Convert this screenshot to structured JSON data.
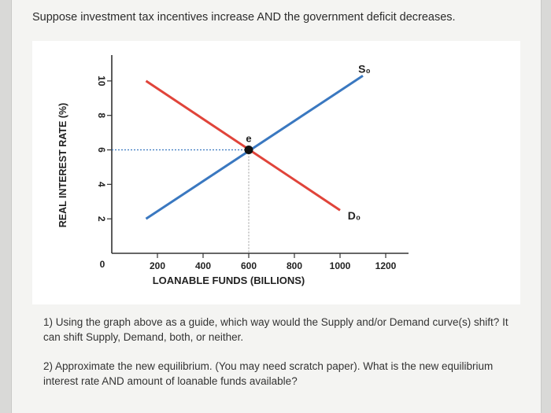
{
  "prompt": "Suppose investment tax incentives increase AND the government deficit decreases.",
  "questions": {
    "q1": "1) Using the graph above as a guide, which way would the Supply and/or Demand curve(s) shift? It can shift Supply, Demand, both, or neither.",
    "q2": "2) Approximate the new equilibrium. (You may need scratch paper). What is the new equilibrium interest rate AND amount of loanable funds available?"
  },
  "chart_data": {
    "type": "line",
    "xlabel": "LOANABLE FUNDS (BILLIONS)",
    "ylabel": "REAL INTEREST RATE (%)",
    "x_ticks": [
      200,
      400,
      600,
      800,
      1000,
      1200
    ],
    "y_ticks": [
      2,
      4,
      6,
      8,
      10
    ],
    "origin_label": "0",
    "xlim": [
      0,
      1300
    ],
    "ylim": [
      0,
      11.5
    ],
    "series": [
      {
        "name": "S₀",
        "color": "#3a78c0",
        "points": [
          [
            150,
            2
          ],
          [
            1100,
            10.3
          ]
        ]
      },
      {
        "name": "D₀",
        "color": "#e0443a",
        "points": [
          [
            150,
            10
          ],
          [
            1000,
            2.5
          ]
        ]
      }
    ],
    "equilibrium": {
      "label": "e",
      "x": 600,
      "y": 6
    }
  }
}
